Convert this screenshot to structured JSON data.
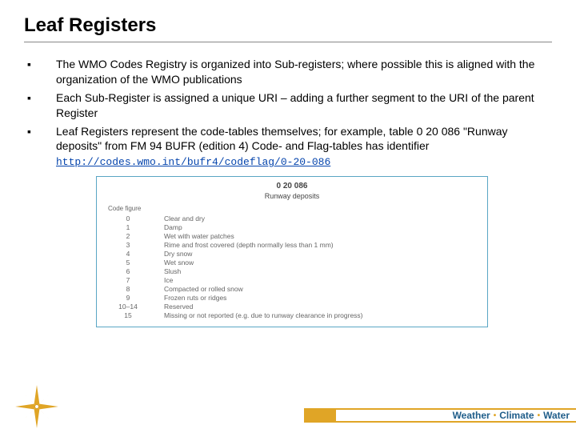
{
  "title": "Leaf Registers",
  "bullets": [
    {
      "text": "The WMO Codes Registry is organized into Sub-registers; where possible this is aligned with the organization of the WMO publications"
    },
    {
      "text": "Each Sub-Register is assigned a unique URI – adding a further segment to the URI of the parent Register"
    },
    {
      "text": "Leaf Registers represent the code-tables themselves; for example, table 0 20 086 \"Runway deposits\" from FM 94 BUFR (edition 4) Code- and Flag-tables has identifier ",
      "link": "http://codes.wmo.int/bufr4/codeflag/0-20-086"
    }
  ],
  "code_table": {
    "code": "0 20 086",
    "name": "Runway deposits",
    "col1": "Code figure",
    "col2": "",
    "rows": [
      {
        "k": "0",
        "v": "Clear and dry"
      },
      {
        "k": "1",
        "v": "Damp"
      },
      {
        "k": "2",
        "v": "Wet with water patches"
      },
      {
        "k": "3",
        "v": "Rime and frost covered (depth normally less than 1 mm)"
      },
      {
        "k": "4",
        "v": "Dry snow"
      },
      {
        "k": "5",
        "v": "Wet snow"
      },
      {
        "k": "6",
        "v": "Slush"
      },
      {
        "k": "7",
        "v": "Ice"
      },
      {
        "k": "8",
        "v": "Compacted or rolled snow"
      },
      {
        "k": "9",
        "v": "Frozen ruts or ridges"
      },
      {
        "k": "10–14",
        "v": "Reserved"
      },
      {
        "k": "15",
        "v": "Missing or not reported (e.g. due to runway clearance in progress)"
      }
    ]
  },
  "footer": {
    "w1": "Weather",
    "w2": "Climate",
    "w3": "Water"
  },
  "colors": {
    "gold": "#e0a526",
    "blue": "#1f5d8a",
    "table_border": "#5aa6c4",
    "link": "#0645ad"
  }
}
